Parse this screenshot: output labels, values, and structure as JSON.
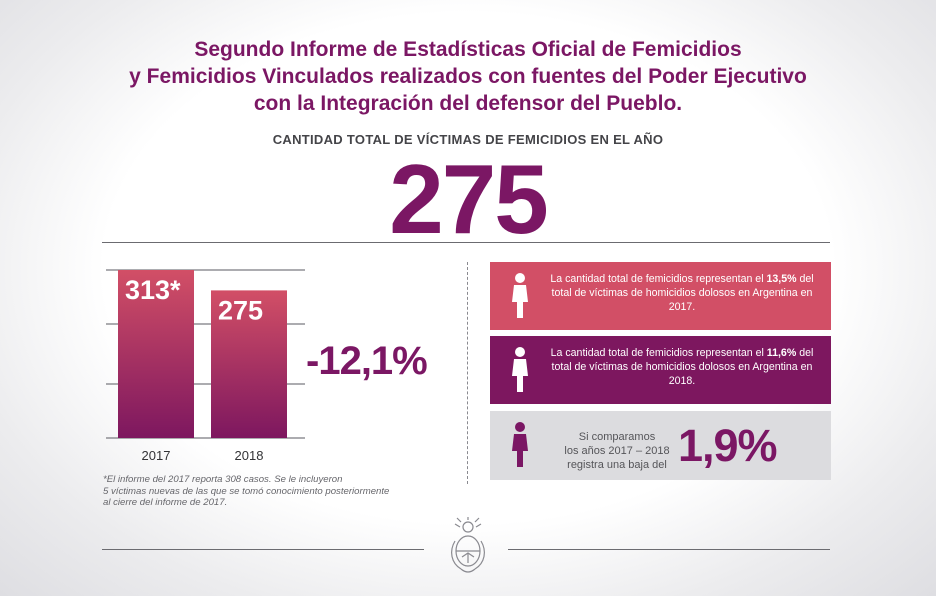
{
  "header": {
    "title_lines": [
      "Segundo Informe de Estadísticas Oficial de Femicidios",
      "y Femicidios Vinculados realizados con fuentes del Poder Ejecutivo",
      "con la Integración del defensor del Pueblo."
    ],
    "subtitle": "CANTIDAD TOTAL DE VÍCTIMAS DE FEMICIDIOS EN EL AÑO",
    "big_number": "275"
  },
  "chart_data": {
    "type": "bar",
    "categories": [
      "2017",
      "2018"
    ],
    "values": [
      313,
      275
    ],
    "data_labels": [
      "313*",
      "275"
    ],
    "title": "",
    "xlabel": "",
    "ylabel": "",
    "ylim": [
      0,
      313
    ],
    "grid": true,
    "annotation": "-12,1%"
  },
  "footnote": {
    "lines": [
      "*El informe del 2017 reporta 308 casos. Se le incluyeron",
      "5 víctimas nuevas de las que se tomó conocimiento posteriormente",
      "al cierre del informe de 2017."
    ]
  },
  "cards": [
    {
      "before": "La cantidad total de femicidios representan el",
      "highlight": "13,5%",
      "after": "del total de víctimas de homicidios dolosos en Argentina en 2017.",
      "color": "#d24f66"
    },
    {
      "before": "La cantidad total de femicidios representan el",
      "highlight": "11,6%",
      "after": "del total de víctimas de homicidios dolosos en Argentina en 2018.",
      "color": "#7d175f"
    },
    {
      "text_lines": [
        "Si comparamos",
        "los años 2017 – 2018",
        "registra una baja del"
      ],
      "highlight": "1,9%",
      "color": "#dcdcdf"
    }
  ],
  "colors": {
    "brand_purple": "#7b1764",
    "card_coral": "#d24f66",
    "bar_top": "#d24f66",
    "bar_bottom": "#7d175f"
  },
  "icons": [
    "woman-icon",
    "argentina-coat-of-arms"
  ]
}
